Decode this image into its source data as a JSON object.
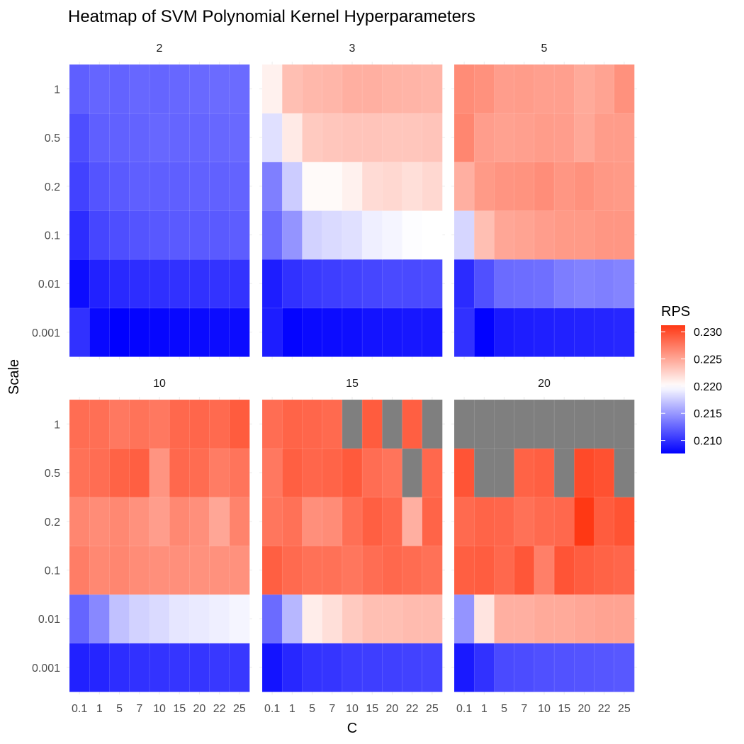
{
  "chart_data": {
    "type": "heatmap",
    "title": "Heatmap of SVM Polynomial Kernel Hyperparameters",
    "xlabel": "C",
    "ylabel": "Scale",
    "x_categories": [
      "0.1",
      "1",
      "5",
      "7",
      "10",
      "15",
      "20",
      "22",
      "25"
    ],
    "y_categories": [
      "0.001",
      "0.01",
      "0.1",
      "0.2",
      "0.5",
      "1"
    ],
    "facet_variable": "degree",
    "legend": {
      "title": "RPS",
      "position": "right",
      "ticks": [
        "0.210",
        "0.215",
        "0.220",
        "0.225",
        "0.230"
      ],
      "range": [
        0.2076,
        0.2312
      ],
      "midpoint": 0.22,
      "low_color": "#0000ff",
      "mid_color": "#ffffff",
      "high_color": "#ff3814",
      "na_color": "#7f7f7f"
    },
    "grid": true,
    "facets": [
      {
        "label": "2",
        "rows": {
          "1": [
            0.2122,
            0.2125,
            0.2124,
            0.2126,
            0.2125,
            0.2126,
            0.2127,
            0.2128,
            0.2128
          ],
          "0.5": [
            0.2114,
            0.2122,
            0.2123,
            0.2124,
            0.2126,
            0.2125,
            0.2125,
            0.2126,
            0.2127
          ],
          "0.2": [
            0.2108,
            0.2117,
            0.212,
            0.2122,
            0.2122,
            0.2122,
            0.2123,
            0.2123,
            0.2124
          ],
          "0.1": [
            0.2098,
            0.211,
            0.2114,
            0.2117,
            0.2119,
            0.212,
            0.212,
            0.212,
            0.2121
          ],
          "0.01": [
            0.2082,
            0.2092,
            0.2096,
            0.2098,
            0.2099,
            0.21,
            0.21,
            0.2101,
            0.2101
          ],
          "0.001": [
            0.21,
            0.208,
            0.2076,
            0.2078,
            0.2079,
            0.208,
            0.2081,
            0.2082,
            0.2082
          ]
        }
      },
      {
        "label": "3",
        "rows": {
          "1": [
            0.2208,
            0.2236,
            0.224,
            0.2241,
            0.2245,
            0.2245,
            0.2243,
            0.2242,
            0.2241
          ],
          "0.5": [
            0.2185,
            0.2212,
            0.223,
            0.2232,
            0.2233,
            0.2233,
            0.2232,
            0.2232,
            0.2233
          ],
          "0.2": [
            0.2138,
            0.2175,
            0.2203,
            0.2203,
            0.2208,
            0.222,
            0.2222,
            0.2218,
            0.2222
          ],
          "0.1": [
            0.2128,
            0.2148,
            0.2178,
            0.2182,
            0.2185,
            0.2192,
            0.2195,
            0.2199,
            0.22
          ],
          "0.01": [
            0.209,
            0.21,
            0.2104,
            0.2106,
            0.2108,
            0.211,
            0.2112,
            0.2112,
            0.2113
          ],
          "0.001": [
            0.209,
            0.2078,
            0.2081,
            0.2082,
            0.2083,
            0.2085,
            0.2086,
            0.2087,
            0.2087
          ]
        }
      },
      {
        "label": "5",
        "rows": {
          "1": [
            0.2265,
            0.2262,
            0.2255,
            0.2256,
            0.2254,
            0.2254,
            0.2248,
            0.2252,
            0.2262
          ],
          "0.5": [
            0.2268,
            0.2255,
            0.2253,
            0.2254,
            0.2256,
            0.2255,
            0.2249,
            0.2256,
            0.2256
          ],
          "0.2": [
            0.2245,
            0.2257,
            0.226,
            0.2261,
            0.2264,
            0.2259,
            0.2262,
            0.2258,
            0.2257
          ],
          "0.1": [
            0.218,
            0.2236,
            0.225,
            0.2252,
            0.2255,
            0.2257,
            0.2257,
            0.2259,
            0.2259
          ],
          "0.01": [
            0.2097,
            0.2115,
            0.2128,
            0.2129,
            0.213,
            0.2137,
            0.2139,
            0.2138,
            0.214
          ],
          "0.001": [
            0.21,
            0.2077,
            0.2088,
            0.209,
            0.2091,
            0.2092,
            0.2093,
            0.2094,
            0.2095
          ]
        }
      },
      {
        "label": "10",
        "rows": {
          "1": [
            0.2282,
            0.2281,
            0.2276,
            0.2279,
            0.2276,
            0.2285,
            0.2286,
            0.2284,
            0.2292
          ],
          "0.5": [
            0.228,
            0.2282,
            0.2288,
            0.229,
            0.226,
            0.2285,
            0.2283,
            0.2274,
            0.2278
          ],
          "0.2": [
            0.2268,
            0.2265,
            0.2267,
            0.2262,
            0.2255,
            0.2267,
            0.2263,
            0.225,
            0.227
          ],
          "0.1": [
            0.2273,
            0.2267,
            0.2268,
            0.2265,
            0.2263,
            0.2263,
            0.2262,
            0.2262,
            0.2262
          ],
          "0.01": [
            0.2125,
            0.2142,
            0.217,
            0.2178,
            0.2182,
            0.2188,
            0.219,
            0.2192,
            0.2195
          ],
          "0.001": [
            0.2092,
            0.2094,
            0.2098,
            0.21,
            0.2101,
            0.2102,
            0.2102,
            0.2103,
            0.2103
          ]
        }
      },
      {
        "label": "15",
        "rows": {
          "1": [
            0.2282,
            0.2287,
            0.2286,
            0.2284,
            null,
            0.2292,
            null,
            0.229,
            null
          ],
          "0.5": [
            0.2276,
            0.229,
            0.2286,
            0.2287,
            0.2293,
            0.2282,
            0.2278,
            null,
            0.2285
          ],
          "0.2": [
            0.2277,
            0.228,
            0.2263,
            0.2265,
            0.2281,
            0.229,
            0.2285,
            0.2245,
            0.2287
          ],
          "0.1": [
            0.229,
            0.2284,
            0.228,
            0.228,
            0.2277,
            0.2282,
            0.2285,
            0.2283,
            0.228
          ],
          "0.01": [
            0.2128,
            0.2165,
            0.221,
            0.2218,
            0.223,
            0.2236,
            0.2236,
            0.2238,
            0.2238
          ],
          "0.001": [
            0.2085,
            0.2095,
            0.2101,
            0.2102,
            0.2105,
            0.2106,
            0.2107,
            0.2108,
            0.2109
          ]
        }
      },
      {
        "label": "20",
        "rows": {
          "1": [
            null,
            null,
            null,
            null,
            null,
            null,
            null,
            null,
            null
          ],
          "0.5": [
            0.2296,
            null,
            null,
            0.2288,
            0.229,
            null,
            0.2302,
            0.2298,
            null
          ],
          "0.2": [
            0.2284,
            0.2287,
            0.2286,
            0.228,
            0.2284,
            0.2285,
            0.2312,
            0.2292,
            0.2297
          ],
          "0.1": [
            0.229,
            0.2291,
            0.2285,
            0.2295,
            0.2272,
            0.2296,
            0.2291,
            0.2288,
            0.2286
          ],
          "0.01": [
            0.2148,
            0.2215,
            0.2245,
            0.2245,
            0.2248,
            0.2248,
            0.225,
            0.2252,
            0.2252
          ],
          "0.001": [
            0.2088,
            0.21,
            0.2112,
            0.2113,
            0.2115,
            0.2116,
            0.2117,
            0.2118,
            0.2119
          ]
        }
      }
    ]
  }
}
